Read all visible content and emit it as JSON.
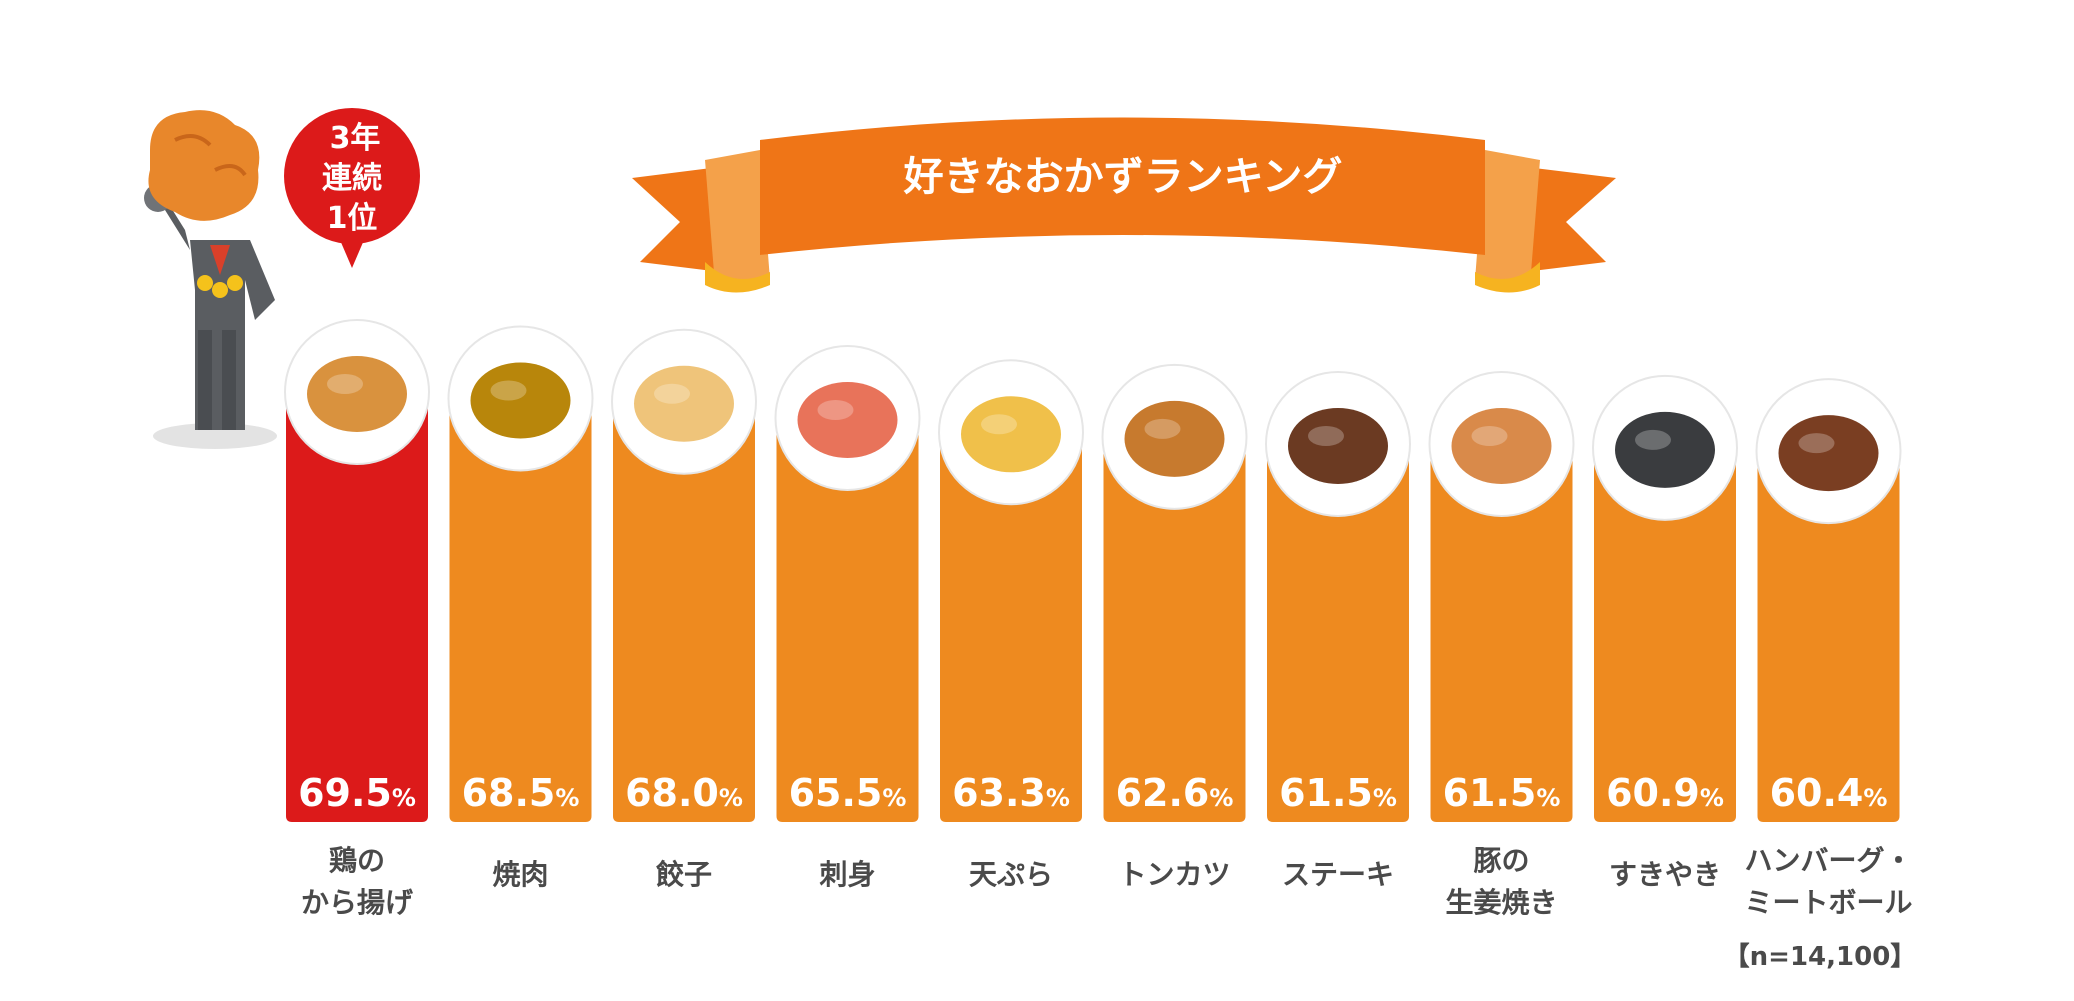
{
  "chart_data": {
    "type": "bar",
    "title": "好きなおかずランキング",
    "categories": [
      [
        "鶏の",
        "から揚げ"
      ],
      [
        "焼肉"
      ],
      [
        "餃子"
      ],
      [
        "刺身"
      ],
      [
        "天ぷら"
      ],
      [
        "トンカツ"
      ],
      [
        "ステーキ"
      ],
      [
        "豚の",
        "生姜焼き"
      ],
      [
        "すきやき"
      ],
      [
        "ハンバーグ・",
        "ミートボール"
      ]
    ],
    "values": [
      69.5,
      68.5,
      68.0,
      65.5,
      63.3,
      62.6,
      61.5,
      61.5,
      60.9,
      60.4
    ],
    "value_suffix": "%",
    "food_icons": [
      "karaage-plate-icon",
      "yakiniku-grill-icon",
      "gyoza-plate-icon",
      "sashimi-plate-icon",
      "tempura-plate-icon",
      "tonkatsu-plate-icon",
      "steak-plate-icon",
      "shogayaki-plate-icon",
      "sukiyaki-pot-icon",
      "hamburg-plate-icon"
    ],
    "xlabel": "",
    "ylabel": "",
    "grid": false,
    "legend": "none",
    "sample_note": "【n=14,100】",
    "highlight_index": 0
  },
  "badge": {
    "lines": [
      "3年",
      "連続",
      "1位"
    ]
  },
  "colors": {
    "highlight": "#dc1a1a",
    "bar": "#ee8a1f",
    "ribbon": "#ef7517",
    "ribbon_light": "#f4a14a",
    "ribbon_gold": "#f6b320",
    "text": "#4a4a4a"
  }
}
